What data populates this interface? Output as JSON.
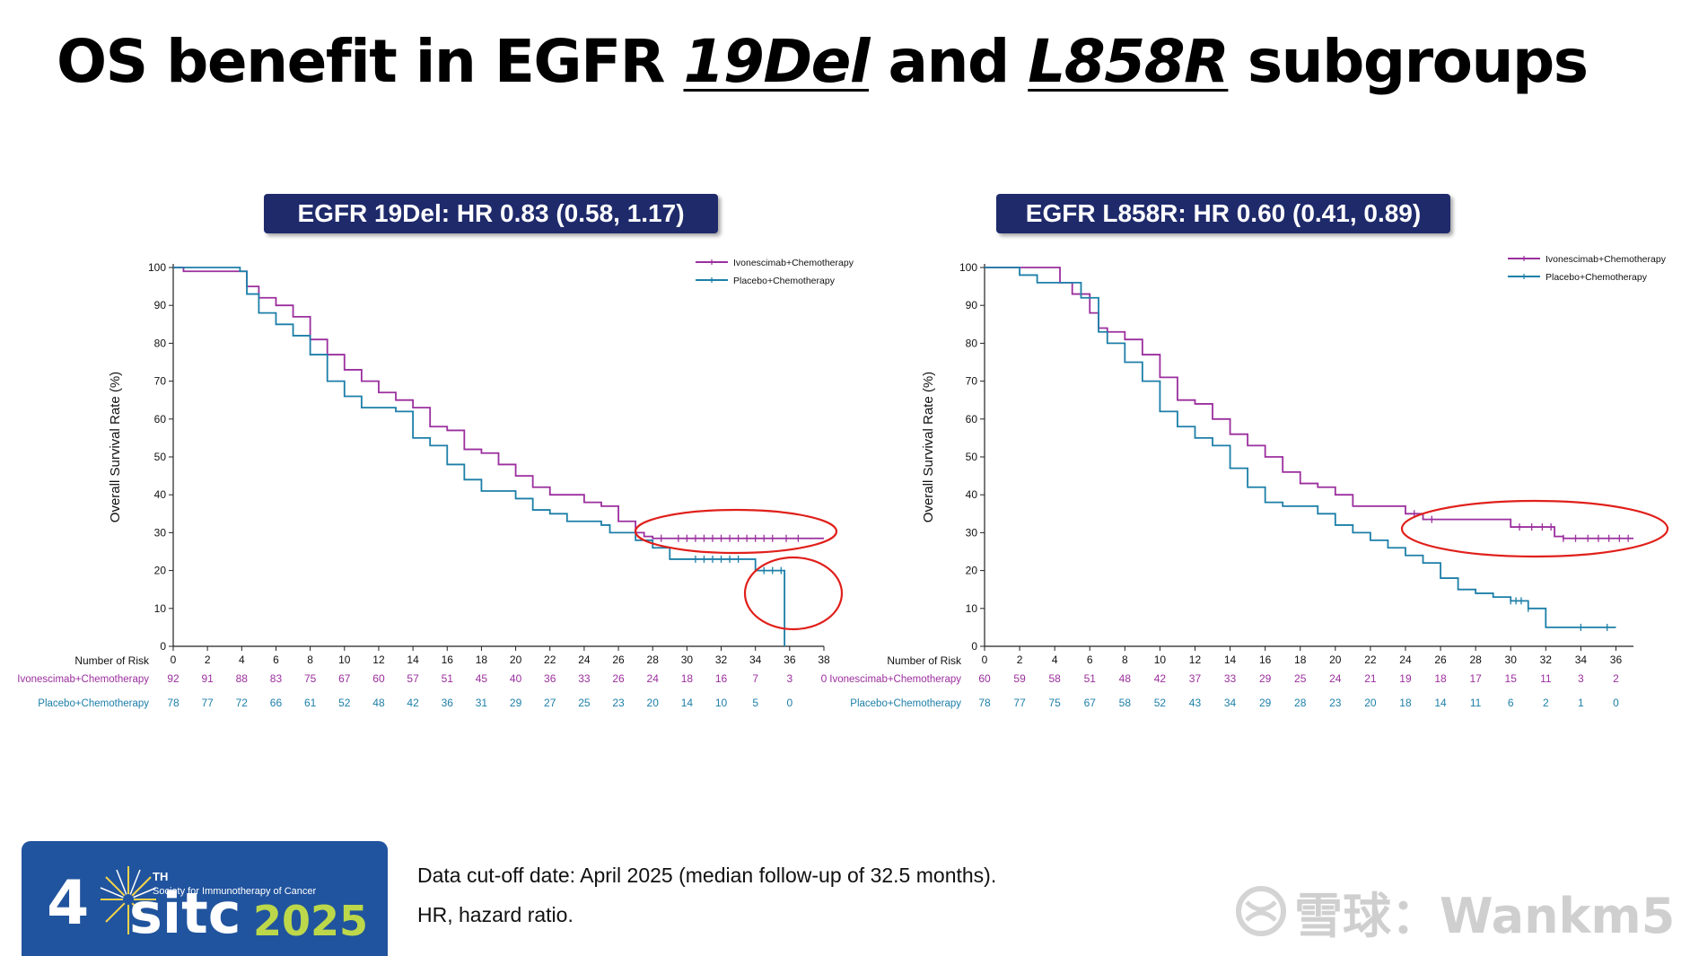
{
  "slide": {
    "title_pre": "OS benefit in EGFR ",
    "title_sub1": "19Del",
    "title_mid": " and ",
    "title_sub2": "L858R",
    "title_post": " subgroups"
  },
  "colors": {
    "ivonescimab": "#9b2f9e",
    "placebo": "#1c7fa8",
    "highlight": "#e0201b",
    "hr_box": "#1f2a6b"
  },
  "footer": {
    "line1": "Data cut-off date: April 2025 (median follow-up of 32.5 months).",
    "line2": "HR, hazard ratio.",
    "watermark": "雪球：Wankm5",
    "logo_number": "4",
    "logo_superscript": "TH",
    "logo_society": "Society for Immunotherapy of Cancer",
    "logo_sitc": "sitc",
    "logo_year": "2025"
  },
  "chart_data": [
    {
      "type": "line",
      "hr_label": "EGFR 19Del: HR 0.83 (0.58, 1.17)",
      "ylabel": "Overall Survival Rate (%)",
      "ylim": [
        0,
        100
      ],
      "xlim": [
        0,
        38
      ],
      "yticks": [
        0,
        10,
        20,
        30,
        40,
        50,
        60,
        70,
        80,
        90,
        100
      ],
      "xticks": [
        0,
        2,
        4,
        6,
        8,
        10,
        12,
        14,
        16,
        18,
        20,
        22,
        24,
        26,
        28,
        30,
        32,
        34,
        36,
        38
      ],
      "legend_position": "top-right",
      "risk_table_title": "Number of Risk",
      "series": [
        {
          "name": "Ivonescimab+Chemotherapy",
          "points": [
            [
              0,
              100
            ],
            [
              0.6,
              99
            ],
            [
              3.9,
              99
            ],
            [
              4.3,
              95
            ],
            [
              5,
              92
            ],
            [
              6,
              90
            ],
            [
              7,
              87
            ],
            [
              8,
              81
            ],
            [
              9,
              77
            ],
            [
              10,
              73
            ],
            [
              11,
              70
            ],
            [
              12,
              67
            ],
            [
              13,
              65
            ],
            [
              14,
              63
            ],
            [
              15,
              58
            ],
            [
              16,
              57
            ],
            [
              17,
              52
            ],
            [
              18,
              51
            ],
            [
              19,
              48
            ],
            [
              20,
              45
            ],
            [
              21,
              42
            ],
            [
              22,
              40
            ],
            [
              24,
              38
            ],
            [
              25,
              37
            ],
            [
              26,
              33
            ],
            [
              27,
              30
            ],
            [
              27.5,
              29
            ],
            [
              28,
              28.5
            ],
            [
              38,
              28.5
            ]
          ],
          "censor_x": [
            28.5,
            29.5,
            30,
            30.5,
            31,
            31.5,
            32,
            32.5,
            33,
            33.5,
            34,
            34.5,
            35,
            35.8,
            36.5
          ],
          "risk": [
            92,
            91,
            88,
            83,
            75,
            67,
            60,
            57,
            51,
            45,
            40,
            36,
            33,
            26,
            24,
            18,
            16,
            7,
            3,
            0
          ]
        },
        {
          "name": "Placebo+Chemotherapy",
          "points": [
            [
              0,
              100
            ],
            [
              3.9,
              99
            ],
            [
              4.3,
              93
            ],
            [
              5,
              88
            ],
            [
              6,
              85
            ],
            [
              7,
              82
            ],
            [
              8,
              77
            ],
            [
              9,
              70
            ],
            [
              10,
              66
            ],
            [
              11,
              63
            ],
            [
              13,
              62
            ],
            [
              14,
              55
            ],
            [
              15,
              53
            ],
            [
              16,
              48
            ],
            [
              17,
              44
            ],
            [
              18,
              41
            ],
            [
              20,
              39
            ],
            [
              21,
              36
            ],
            [
              22,
              35
            ],
            [
              23,
              33
            ],
            [
              25,
              32
            ],
            [
              25.5,
              30
            ],
            [
              27,
              28
            ],
            [
              28,
              26
            ],
            [
              29,
              23
            ],
            [
              33.5,
              23
            ],
            [
              34,
              20
            ],
            [
              35.7,
              20
            ],
            [
              35.7,
              0
            ]
          ],
          "censor_x": [
            30.5,
            31,
            31.5,
            32,
            32.5,
            33,
            34.5,
            35,
            35.5
          ],
          "risk": [
            78,
            77,
            72,
            66,
            61,
            52,
            48,
            42,
            36,
            31,
            29,
            27,
            25,
            23,
            20,
            14,
            10,
            5,
            0
          ]
        }
      ]
    },
    {
      "type": "line",
      "hr_label": "EGFR L858R: HR 0.60 (0.41, 0.89)",
      "ylabel": "Overall Survival Rate (%)",
      "ylim": [
        0,
        100
      ],
      "xlim": [
        0,
        37
      ],
      "yticks": [
        0,
        10,
        20,
        30,
        40,
        50,
        60,
        70,
        80,
        90,
        100
      ],
      "xticks": [
        0,
        2,
        4,
        6,
        8,
        10,
        12,
        14,
        16,
        18,
        20,
        22,
        24,
        26,
        28,
        30,
        32,
        34,
        36
      ],
      "legend_position": "top-right",
      "risk_table_title": "Number of Risk",
      "series": [
        {
          "name": "Ivonescimab+Chemotherapy",
          "points": [
            [
              0,
              100
            ],
            [
              3.9,
              100
            ],
            [
              4.3,
              96
            ],
            [
              5,
              93
            ],
            [
              6,
              88
            ],
            [
              6.5,
              84
            ],
            [
              7,
              83
            ],
            [
              8,
              81
            ],
            [
              9,
              77
            ],
            [
              10,
              71
            ],
            [
              11,
              65
            ],
            [
              12,
              64
            ],
            [
              13,
              60
            ],
            [
              14,
              56
            ],
            [
              15,
              53
            ],
            [
              16,
              50
            ],
            [
              17,
              46
            ],
            [
              18,
              43
            ],
            [
              19,
              42
            ],
            [
              20,
              40
            ],
            [
              21,
              37
            ],
            [
              23,
              37
            ],
            [
              24,
              35
            ],
            [
              25,
              33.5
            ],
            [
              29,
              33.5
            ],
            [
              30,
              31.5
            ],
            [
              32,
              31.5
            ],
            [
              32.5,
              29
            ],
            [
              33,
              28.5
            ],
            [
              37,
              28.5
            ]
          ],
          "censor_x": [
            24.5,
            25.5,
            30.5,
            31.2,
            31.8,
            32.3,
            33,
            33.7,
            34.4,
            35,
            35.6,
            36.2,
            36.7
          ],
          "risk": [
            60,
            59,
            58,
            51,
            48,
            42,
            37,
            33,
            29,
            25,
            24,
            21,
            19,
            18,
            17,
            15,
            11,
            3,
            2
          ]
        },
        {
          "name": "Placebo+Chemotherapy",
          "points": [
            [
              0,
              100
            ],
            [
              2,
              98
            ],
            [
              3,
              96
            ],
            [
              4.5,
              96
            ],
            [
              5.5,
              92
            ],
            [
              6.5,
              83
            ],
            [
              7,
              80
            ],
            [
              8,
              75
            ],
            [
              9,
              70
            ],
            [
              10,
              62
            ],
            [
              11,
              58
            ],
            [
              12,
              55
            ],
            [
              13,
              53
            ],
            [
              14,
              47
            ],
            [
              15,
              42
            ],
            [
              16,
              38
            ],
            [
              17,
              37
            ],
            [
              18,
              37
            ],
            [
              19,
              35
            ],
            [
              20,
              32
            ],
            [
              21,
              30
            ],
            [
              22,
              28
            ],
            [
              23,
              26
            ],
            [
              24,
              24
            ],
            [
              25,
              22
            ],
            [
              26,
              18
            ],
            [
              27,
              15
            ],
            [
              28,
              14
            ],
            [
              29,
              13
            ],
            [
              30,
              12
            ],
            [
              31,
              10
            ],
            [
              32,
              7
            ],
            [
              32,
              5
            ],
            [
              36,
              5
            ]
          ],
          "censor_x": [
            30,
            30.3,
            30.6,
            31,
            34,
            35.5
          ],
          "risk": [
            78,
            77,
            75,
            67,
            58,
            52,
            43,
            34,
            29,
            28,
            23,
            20,
            18,
            14,
            11,
            6,
            2,
            1,
            0
          ]
        }
      ]
    }
  ]
}
